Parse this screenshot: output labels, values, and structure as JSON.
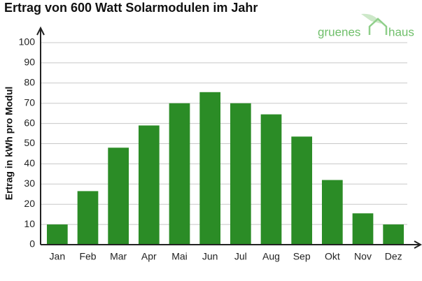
{
  "chart_data": {
    "type": "bar",
    "title": "Ertrag von 600 Watt Solarmodulen im Jahr",
    "y_label": "Ertrag in kWh pro Modul",
    "logo": [
      "gruenes",
      "haus"
    ],
    "categories": [
      "Jan",
      "Feb",
      "Mar",
      "Apr",
      "Mai",
      "Jun",
      "Jul",
      "Aug",
      "Sep",
      "Okt",
      "Nov",
      "Dez"
    ],
    "values": [
      10,
      26.5,
      48,
      59,
      70,
      75.5,
      70,
      64.5,
      53.5,
      32,
      15.5,
      10
    ],
    "color": "#2b8c26",
    "ylim": [
      0,
      100
    ],
    "yticks": [
      0,
      10,
      20,
      30,
      40,
      50,
      60,
      70,
      80,
      90,
      100
    ],
    "grid": true
  }
}
